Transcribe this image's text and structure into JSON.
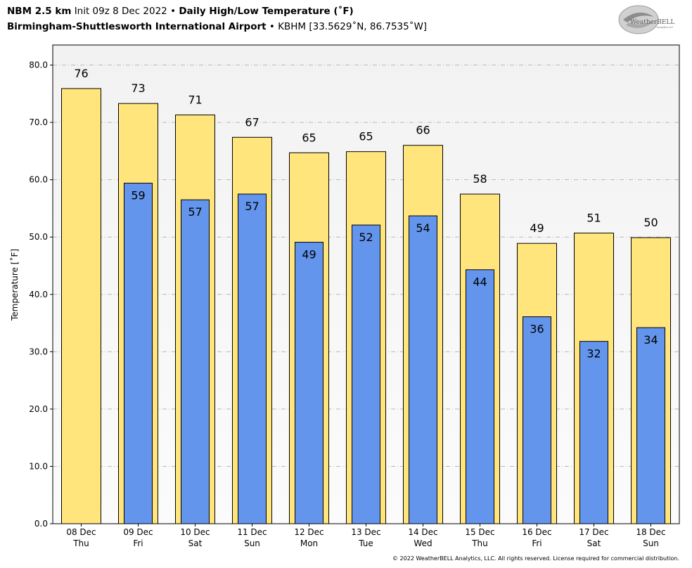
{
  "header": {
    "model": "NBM 2.5 km",
    "init": "Init 09z 8 Dec 2022",
    "bullet": "•",
    "product": "Daily High/Low Temperature (˚F)",
    "station_name": "Birmingham-Shuttlesworth International Airport",
    "station_info": "KBHM [33.5629˚N, 86.7535˚W]"
  },
  "logo": {
    "text": "WeatherBELL",
    "subtext": "Analytics LLC"
  },
  "copyright": "© 2022 WeatherBELL Analytics, LLC. All rights reserved. License required for commercial distribution.",
  "colors": {
    "high": "#ffe57c",
    "low": "#6495ed",
    "plot_bg": "#f4f4f4",
    "grid": "#b9b9b9"
  },
  "chart_data": {
    "type": "bar",
    "ylabel": "Temperature [˚F]",
    "ylim": [
      0,
      83.5
    ],
    "yticks": [
      "0.0",
      "10.0",
      "20.0",
      "30.0",
      "40.0",
      "50.0",
      "60.0",
      "70.0",
      "80.0"
    ],
    "grid": true,
    "categories": [
      {
        "date": "08 Dec",
        "day": "Thu"
      },
      {
        "date": "09 Dec",
        "day": "Fri"
      },
      {
        "date": "10 Dec",
        "day": "Sat"
      },
      {
        "date": "11 Dec",
        "day": "Sun"
      },
      {
        "date": "12 Dec",
        "day": "Mon"
      },
      {
        "date": "13 Dec",
        "day": "Tue"
      },
      {
        "date": "14 Dec",
        "day": "Wed"
      },
      {
        "date": "15 Dec",
        "day": "Thu"
      },
      {
        "date": "16 Dec",
        "day": "Fri"
      },
      {
        "date": "17 Dec",
        "day": "Sat"
      },
      {
        "date": "18 Dec",
        "day": "Sun"
      }
    ],
    "series": [
      {
        "name": "High",
        "values": [
          75.9,
          73.3,
          71.3,
          67.4,
          64.7,
          64.9,
          66.0,
          57.5,
          48.9,
          50.7,
          49.9
        ],
        "labels": [
          "76",
          "73",
          "71",
          "67",
          "65",
          "65",
          "66",
          "58",
          "49",
          "51",
          "50"
        ]
      },
      {
        "name": "Low",
        "values": [
          null,
          59.4,
          56.5,
          57.5,
          49.1,
          52.1,
          53.7,
          44.3,
          36.1,
          31.8,
          34.2
        ],
        "labels": [
          "",
          "59",
          "57",
          "57",
          "49",
          "52",
          "54",
          "44",
          "36",
          "32",
          "34"
        ]
      }
    ]
  }
}
